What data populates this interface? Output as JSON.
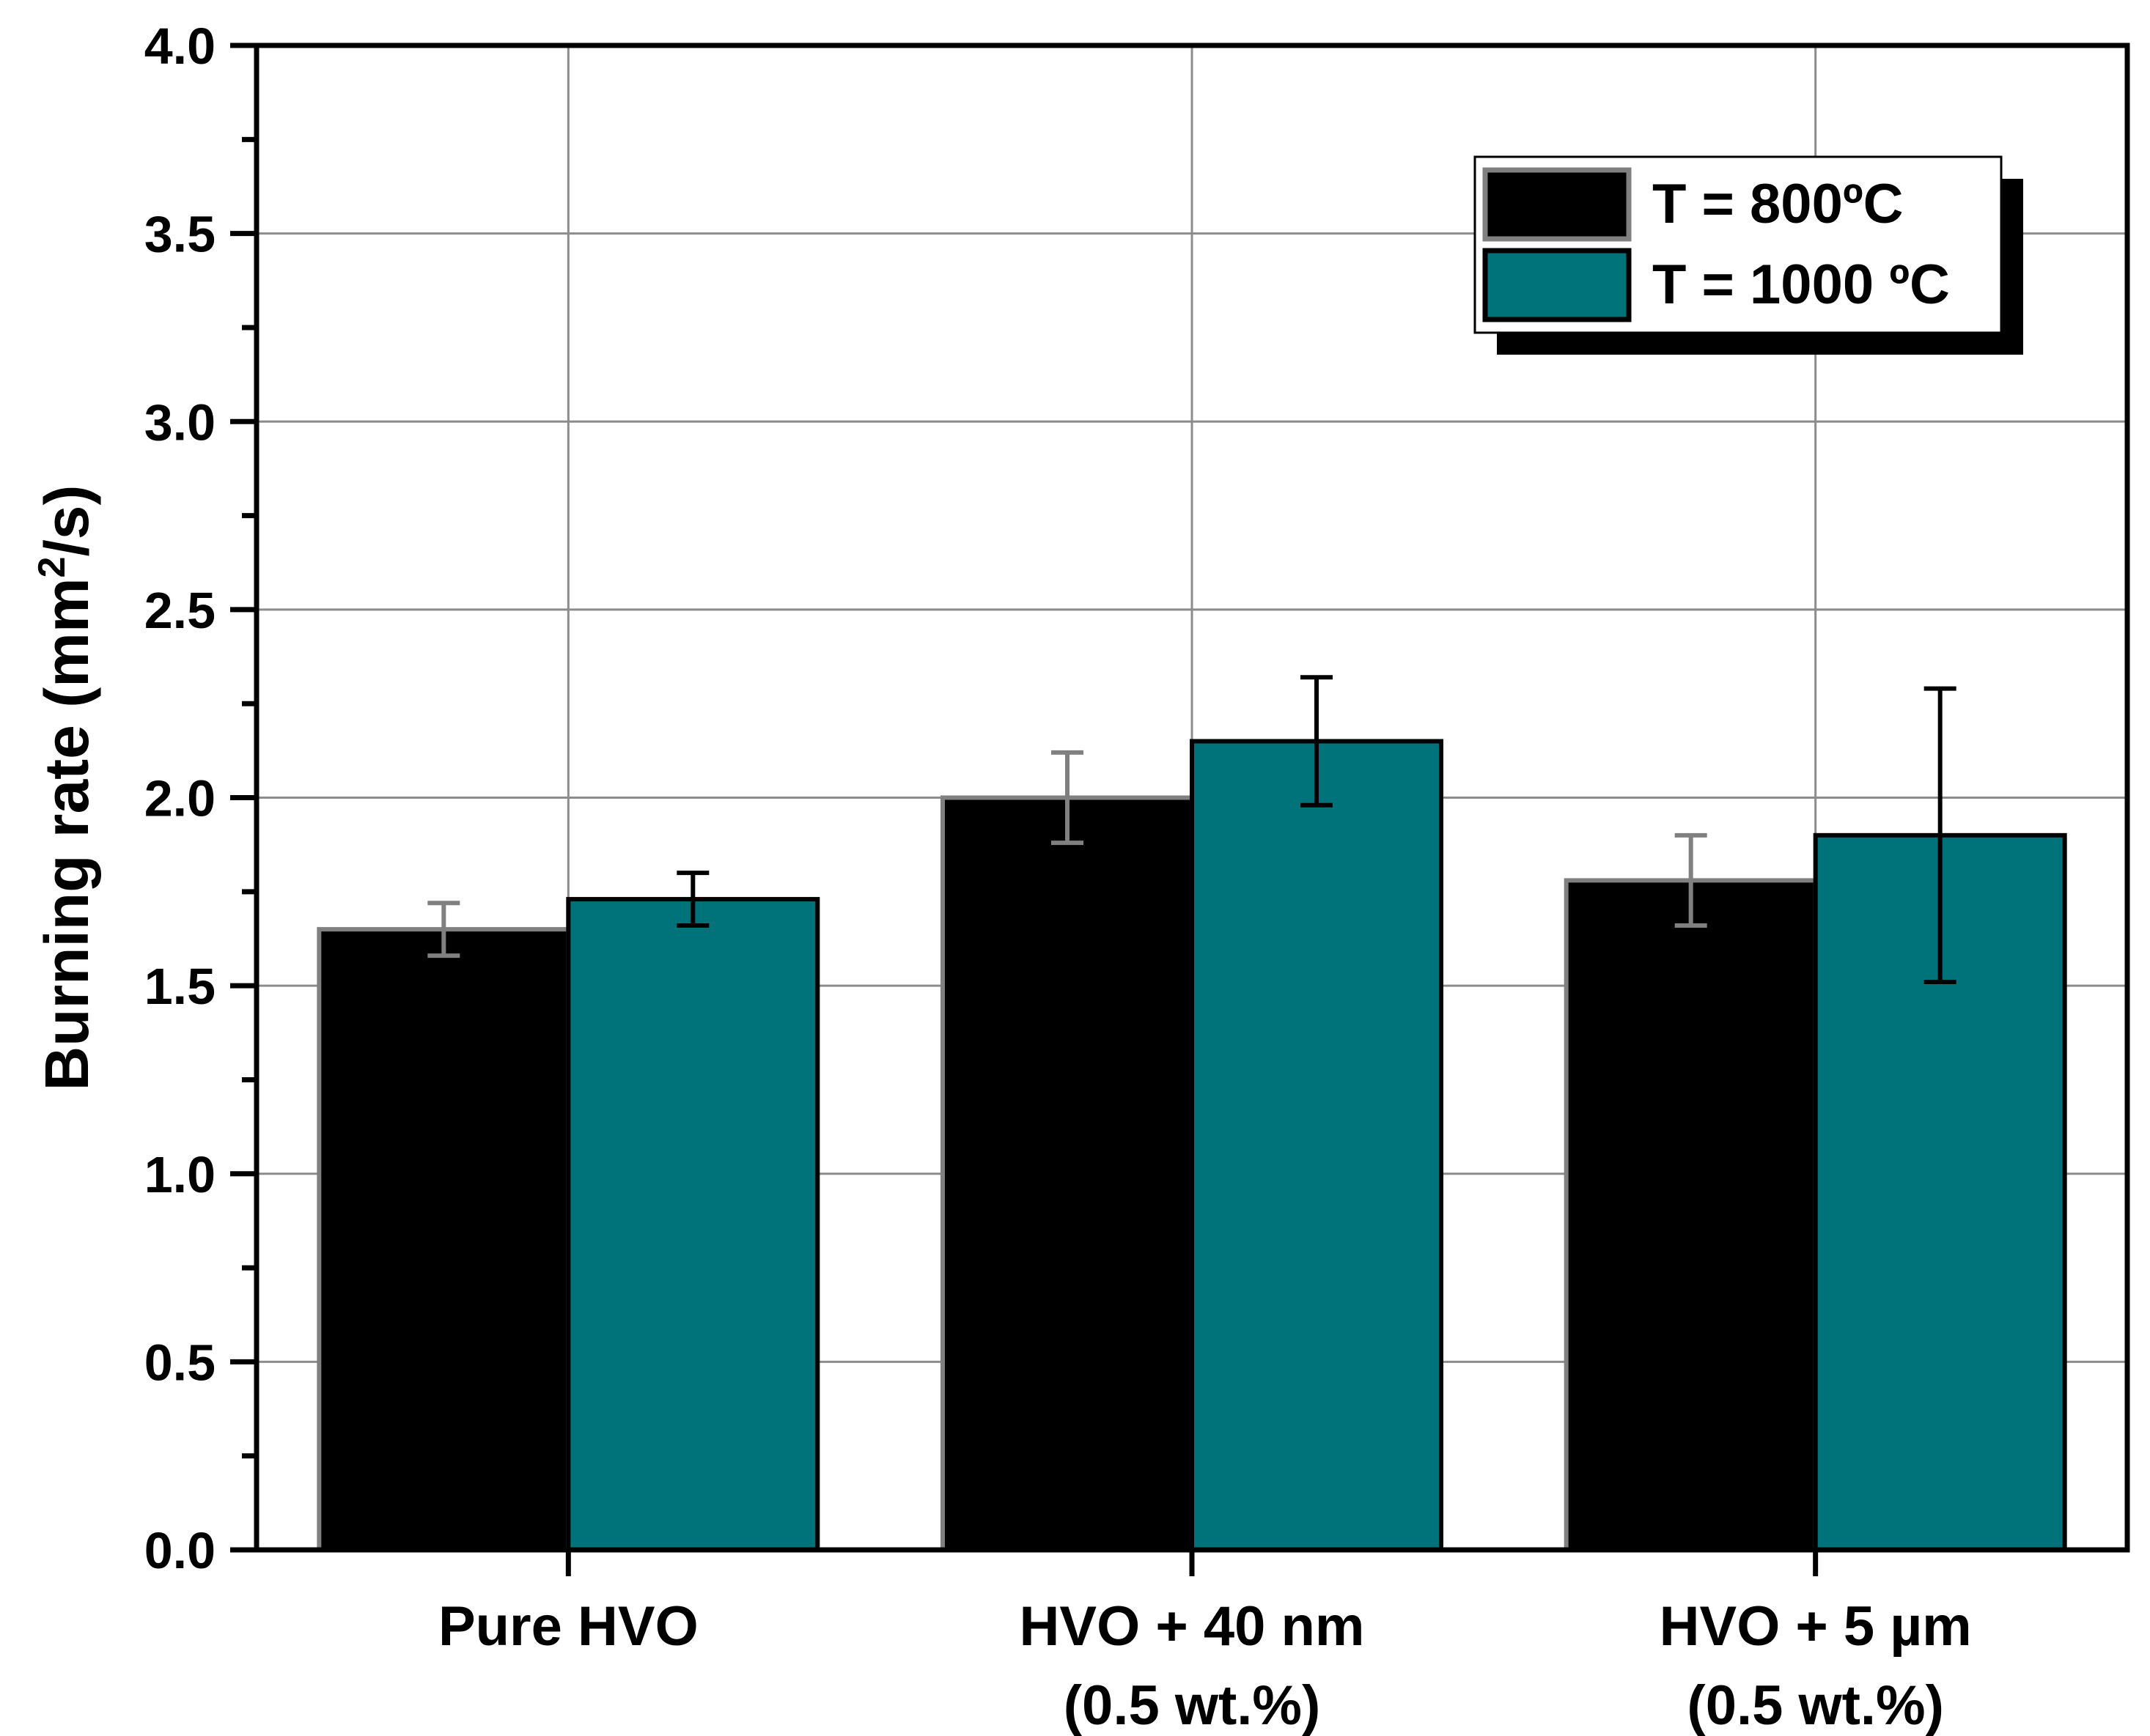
{
  "chart_data": {
    "type": "bar",
    "title": "",
    "xlabel": "",
    "ylabel": "Burning rate (mm",
    "ylabel_superscript": "2",
    "ylabel_suffix": "/s)",
    "ylim": [
      0,
      4.0
    ],
    "yticks": [
      "0.0",
      "0.5",
      "1.0",
      "1.5",
      "2.0",
      "2.5",
      "3.0",
      "3.5",
      "4.0"
    ],
    "grid": true,
    "legend_position": "top-right",
    "categories": [
      {
        "line1": "Pure HVO",
        "line2": ""
      },
      {
        "line1": "HVO + 40 nm",
        "line2": "(0.5 wt.%)"
      },
      {
        "line1": "HVO + 5 µm",
        "line2": "(0.5 wt.%)"
      }
    ],
    "series": [
      {
        "name": "T = 800ºC",
        "color": "#000000",
        "edge_color": "#808080",
        "values": [
          1.65,
          2.0,
          1.78
        ],
        "errors": [
          {
            "low": 1.58,
            "high": 1.72
          },
          {
            "low": 1.88,
            "high": 2.12
          },
          {
            "low": 1.66,
            "high": 1.9
          }
        ]
      },
      {
        "name": "T = 1000 ºC",
        "color": "#00727A",
        "edge_color": "#000000",
        "values": [
          1.73,
          2.15,
          1.9
        ],
        "errors": [
          {
            "low": 1.66,
            "high": 1.8
          },
          {
            "low": 1.98,
            "high": 2.32
          },
          {
            "low": 1.51,
            "high": 2.29
          }
        ]
      }
    ]
  }
}
